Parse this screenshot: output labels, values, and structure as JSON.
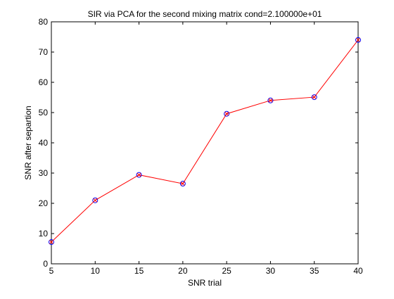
{
  "chart_data": {
    "type": "line",
    "title": "SIR via PCA for the second mixing matrix cond=2.100000e+01",
    "xlabel": "SNR trial",
    "ylabel": "SNR after separtion",
    "xlim": [
      5,
      40
    ],
    "ylim": [
      0,
      80
    ],
    "xticks": [
      5,
      10,
      15,
      20,
      25,
      30,
      35,
      40
    ],
    "yticks": [
      0,
      10,
      20,
      30,
      40,
      50,
      60,
      70,
      80
    ],
    "grid": false,
    "legend": "none",
    "series": [
      {
        "x": [
          5,
          10,
          15,
          20,
          25,
          30,
          35,
          40
        ],
        "y": [
          7.2,
          21.0,
          29.4,
          26.5,
          49.6,
          54.0,
          55.1,
          74.0
        ],
        "line_color": "#ff0000",
        "marker": "circle-x",
        "marker_color": "#0000ff",
        "marker_x_color": "#ff0000"
      }
    ]
  }
}
